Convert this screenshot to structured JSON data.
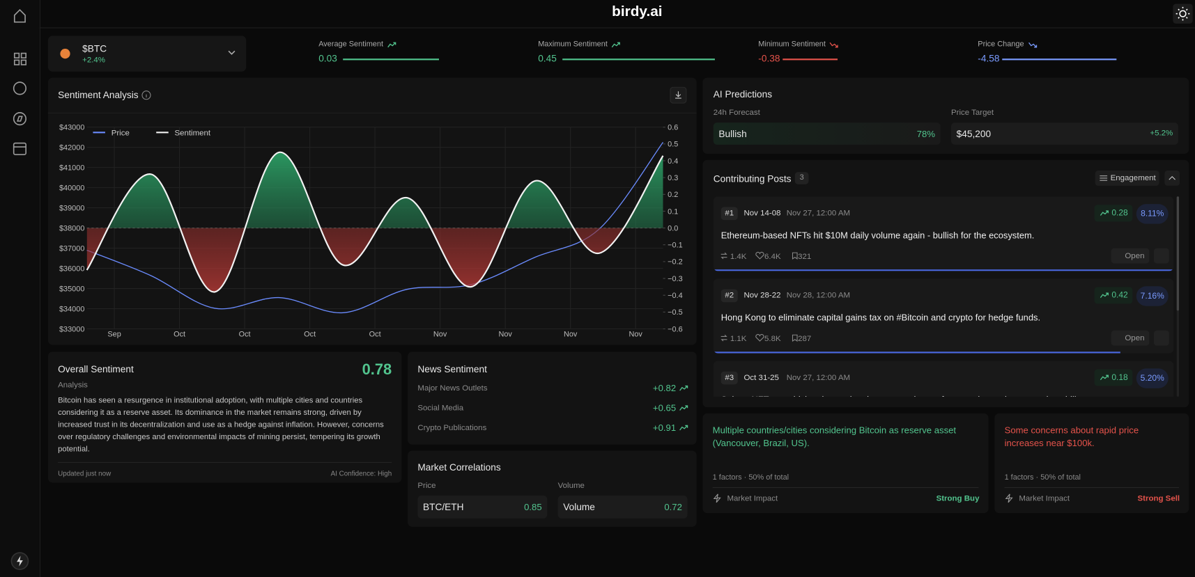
{
  "header": {
    "logo": "birdy.ai"
  },
  "token": {
    "symbol": "$BTC",
    "change": "+2.4%"
  },
  "metrics": [
    {
      "label": "Average Sentiment",
      "value": "0.03"
    },
    {
      "label": "Maximum Sentiment",
      "value": "0.45"
    },
    {
      "label": "Minimum Sentiment",
      "value": "-0.38"
    },
    {
      "label": "Price Change",
      "value": "-4.58"
    }
  ],
  "sentiment_panel": {
    "title": "Sentiment Analysis"
  },
  "chart_data": {
    "type": "line",
    "xtick_labels": [
      "Sep",
      "Oct",
      "Oct",
      "Oct",
      "Oct",
      "Nov",
      "Nov",
      "Nov",
      "Nov"
    ],
    "series": [
      {
        "name": "Price",
        "color": "#6b8cff",
        "values": [
          36900,
          35640,
          34020,
          34550,
          33800,
          34960,
          35190,
          36550,
          37940,
          42250
        ]
      },
      {
        "name": "Sentiment",
        "color": "#f2f2f2",
        "axis": "y2",
        "values": [
          -0.25,
          0.32,
          -0.38,
          0.45,
          -0.22,
          0.18,
          -0.35,
          0.28,
          -0.15,
          0.43
        ]
      }
    ],
    "ylim": [
      33000,
      43000
    ],
    "yticks": [
      {
        "value": 43000,
        "label": "$43000"
      },
      {
        "value": 42000,
        "label": "$42000"
      },
      {
        "value": 41000,
        "label": "$41000"
      },
      {
        "value": 40000,
        "label": "$40000"
      },
      {
        "value": 39000,
        "label": "$39000"
      },
      {
        "value": 38000,
        "label": "$38000"
      },
      {
        "value": 37000,
        "label": "$37000"
      },
      {
        "value": 36000,
        "label": "$36000"
      },
      {
        "value": 35000,
        "label": "$35000"
      },
      {
        "value": 34000,
        "label": "$34000"
      },
      {
        "value": 33000,
        "label": "$33000"
      }
    ],
    "y2lim": [
      -0.6,
      0.6
    ],
    "y2ticks": [
      0.6,
      0.5,
      0.4,
      0.3,
      0.2,
      0.1,
      {
        "value": 0,
        "label": "0.0"
      },
      {
        "value": -0.1,
        "label": "−0.1"
      },
      {
        "value": -0.2,
        "label": "−0.2"
      },
      {
        "value": -0.3,
        "label": "−0.3"
      },
      {
        "value": -0.4,
        "label": "−0.4"
      },
      {
        "value": -0.5,
        "label": "−0.5"
      },
      {
        "value": -0.6,
        "label": "−0.6"
      }
    ],
    "grid": true
  },
  "overall": {
    "title": "Overall Sentiment",
    "score": "0.78",
    "subtitle": "Analysis",
    "text": "Bitcoin has seen a resurgence in institutional adoption, with multiple cities and countries considering it as a reserve asset. Its dominance in the market remains strong, driven by increased trust in its decentralization and use as a hedge against inflation. However, concerns over regulatory challenges and environmental impacts of mining persist, tempering its growth potential.",
    "updated": "Updated just now",
    "confidence": "AI Confidence: High"
  },
  "news": {
    "title": "News Sentiment",
    "rows": [
      {
        "label": "Major News Outlets",
        "value": "+0.82"
      },
      {
        "label": "Social Media",
        "value": "+0.65"
      },
      {
        "label": "Crypto Publications",
        "value": "+0.91"
      }
    ]
  },
  "correlations": {
    "title": "Market Correlations",
    "items": [
      {
        "header": "Price",
        "label": "BTC/ETH",
        "value": "0.85"
      },
      {
        "header": "Volume",
        "label": "Volume",
        "value": "0.72"
      }
    ]
  },
  "predictions": {
    "title": "AI Predictions",
    "items": [
      {
        "label": "24h Forecast",
        "value": "Bullish",
        "extra": "78%"
      },
      {
        "label": "Price Target",
        "value": "$45,200",
        "extra": "+5.2%"
      }
    ]
  },
  "posts": {
    "title": "Contributing Posts",
    "count": "3",
    "sort": "Engagement",
    "open": "Open",
    "items": [
      {
        "rank": "#1",
        "range": "Nov 14-08",
        "date": "Nov 27, 12:00 AM",
        "score": "0.28",
        "pct": "8.11%",
        "text": "Ethereum-based NFTs hit $10M daily volume again - bullish for the ecosystem.",
        "reposts": "1.4K",
        "likes": "6.4K",
        "comments": "321"
      },
      {
        "rank": "#2",
        "range": "Nov 28-22",
        "date": "Nov 28, 12:00 AM",
        "score": "0.42",
        "pct": "7.16%",
        "text": "Hong Kong to eliminate capital gains tax on #Bitcoin and crypto for hedge funds.",
        "reposts": "1.1K",
        "likes": "5.8K",
        "comments": "287"
      },
      {
        "rank": "#3",
        "range": "Oct 31-25",
        "date": "Nov 27, 12:00 AM",
        "score": "0.18",
        "pct": "5.20%",
        "text": "Solana NFTs are driving the market, but we need more focus on improving network stability",
        "reposts": "",
        "likes": "",
        "comments": ""
      }
    ]
  },
  "factors": [
    {
      "text": "Multiple countries/cities considering Bitcoin as reserve asset (Vancouver, Brazil, US).",
      "meta": "1 factors · 50% of total",
      "impact_label": "Market Impact",
      "impact": "Strong Buy"
    },
    {
      "text": "Some concerns about rapid price increases near $100k.",
      "meta": "1 factors · 50% of total",
      "impact_label": "Market Impact",
      "impact": "Strong Sell"
    }
  ]
}
